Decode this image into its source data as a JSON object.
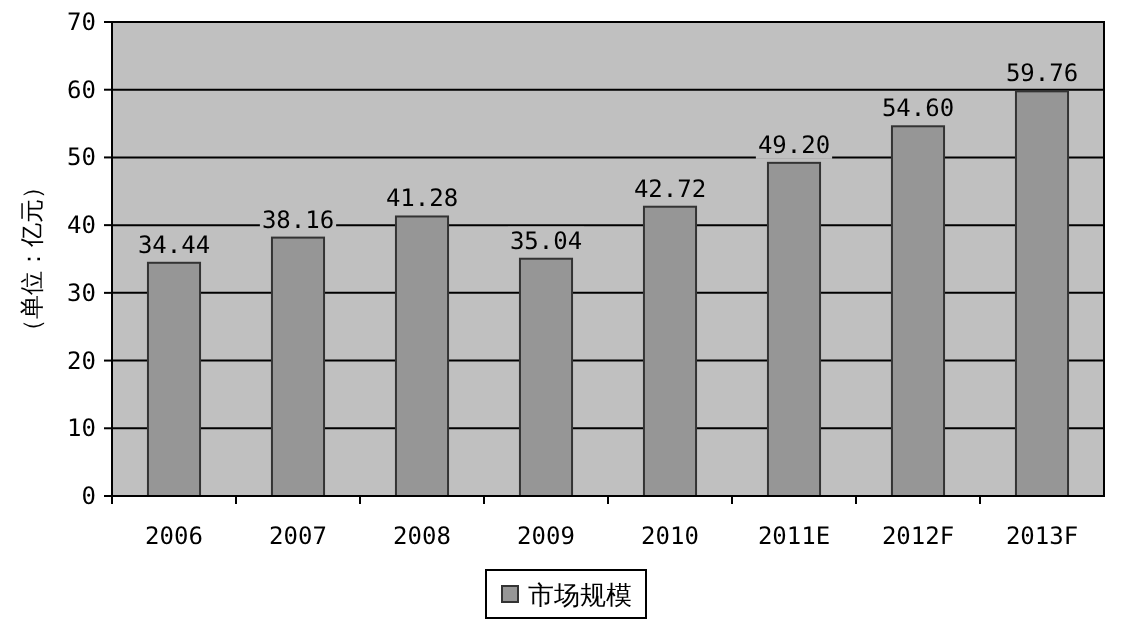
{
  "chart_data": {
    "type": "bar",
    "ylabel": "（单位：亿元）",
    "categories": [
      "2006",
      "2007",
      "2008",
      "2009",
      "2010",
      "2011E",
      "2012F",
      "2013F"
    ],
    "series": [
      {
        "name": "市场规模",
        "color": "#969696",
        "values": [
          34.44,
          38.16,
          41.28,
          35.04,
          42.72,
          49.2,
          54.6,
          59.76
        ]
      }
    ],
    "value_labels": [
      "34.44",
      "38.16",
      "41.28",
      "35.04",
      "42.72",
      "49.20",
      "54.60",
      "59.76"
    ],
    "ylim": [
      0,
      70
    ],
    "yticks": [
      0,
      10,
      20,
      30,
      40,
      50,
      60,
      70
    ],
    "grid": "y",
    "legend": "bottom"
  }
}
